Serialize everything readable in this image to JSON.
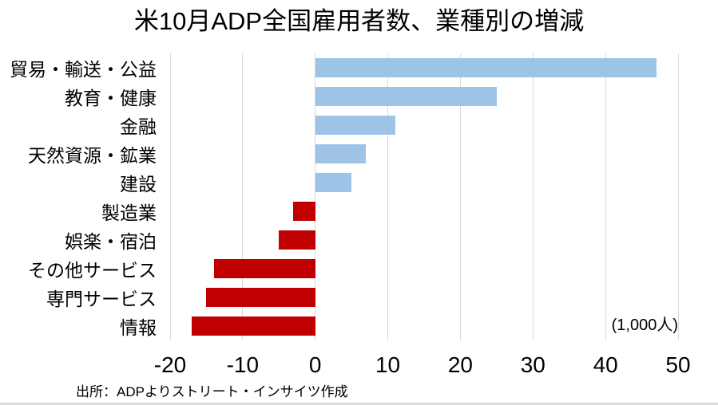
{
  "chart_data": {
    "type": "bar",
    "orientation": "horizontal",
    "title": "米10月ADP全国雇用者数、業種別の増減",
    "categories": [
      "貿易・輸送・公益",
      "教育・健康",
      "金融",
      "天然資源・鉱業",
      "建設",
      "製造業",
      "娯楽・宿泊",
      "その他サービス",
      "専門サービス",
      "情報"
    ],
    "values": [
      47,
      25,
      11,
      7,
      5,
      -3,
      -5,
      -14,
      -15,
      -17
    ],
    "xlabel": "",
    "ylabel": "",
    "xlim": [
      -20,
      50
    ],
    "xticks": [
      -20,
      -10,
      0,
      10,
      20,
      30,
      40,
      50
    ],
    "grid": true,
    "legend": false,
    "unit_note": "(1,000人)",
    "source_note": "出所：ADPよりストリート・インサイツ作成",
    "colors": {
      "positive_bar": "#9DC3E6",
      "negative_bar": "#C00000",
      "gridline": "#D9D9D9",
      "text": "#000000",
      "background": "#FFFFFF"
    }
  }
}
